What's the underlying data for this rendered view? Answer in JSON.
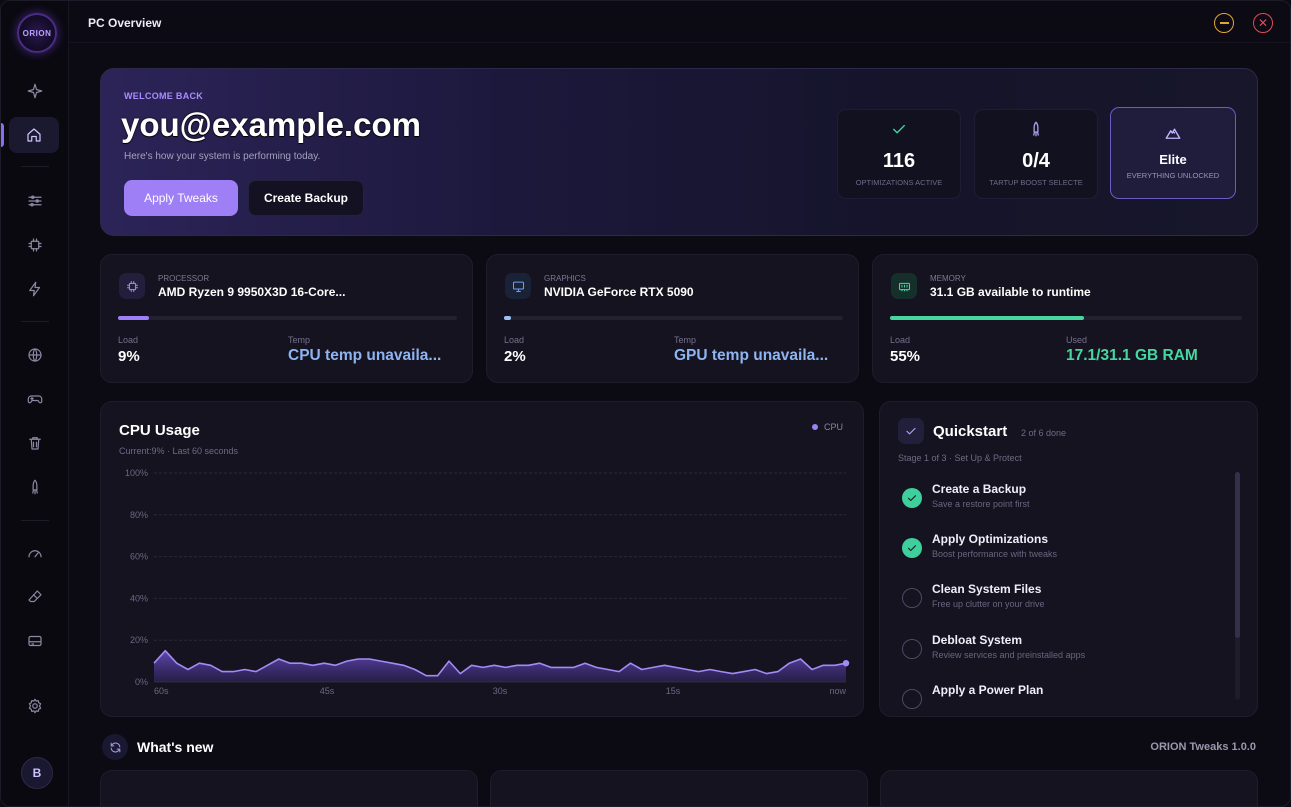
{
  "app": {
    "logo_text": "ORION",
    "window_title": "PC Overview"
  },
  "sidebar": {
    "items": [
      {
        "name": "sparkle"
      },
      {
        "name": "home",
        "active": true
      },
      {
        "name": "sliders"
      },
      {
        "name": "chip"
      },
      {
        "name": "bolt"
      },
      {
        "name": "globe"
      },
      {
        "name": "gamepad"
      },
      {
        "name": "trash"
      },
      {
        "name": "rocket"
      },
      {
        "name": "gauge"
      },
      {
        "name": "eraser"
      },
      {
        "name": "storage"
      },
      {
        "name": "gear"
      }
    ],
    "avatar_initial": "B"
  },
  "hero": {
    "kicker": "WELCOME BACK",
    "user": "you@example.com",
    "subtitle": "Here's how your system is performing today.",
    "primary_button": "Apply Tweaks",
    "secondary_button": "Create Backup",
    "stats": [
      {
        "icon": "check-icon",
        "value": "116",
        "caption": "OPTIMIZATIONS ACTIVE"
      },
      {
        "icon": "rocket-icon",
        "value": "0/4",
        "caption": "TARTUP BOOST SELECTE"
      },
      {
        "icon": "mountain-icon",
        "value": "Elite",
        "caption": "EVERYTHING UNLOCKED"
      }
    ]
  },
  "hardware": {
    "processor": {
      "kind": "PROCESSOR",
      "name": "AMD Ryzen 9 9950X3D 16-Core...",
      "load_label": "Load",
      "load_value": "9%",
      "load_fraction": 0.09,
      "temp_label": "Temp",
      "temp_value": "CPU temp unavaila..."
    },
    "graphics": {
      "kind": "GRAPHICS",
      "name": "NVIDIA GeForce RTX 5090",
      "load_label": "Load",
      "load_value": "2%",
      "load_fraction": 0.02,
      "temp_label": "Temp",
      "temp_value": "GPU temp unavaila..."
    },
    "memory": {
      "kind": "MEMORY",
      "name": "31.1 GB available to runtime",
      "load_label": "Load",
      "load_value": "55%",
      "load_fraction": 0.55,
      "used_label": "Used",
      "used_value": "17.1/31.1 GB RAM"
    }
  },
  "colors": {
    "accent": "#9d80f5",
    "green": "#3fcf9c",
    "temp_text": "#8fb4f2",
    "ram_text": "#47d6a0"
  },
  "cpu_panel": {
    "title": "CPU Usage",
    "subtitle": "Current:9% · Last 60 seconds",
    "legend": "CPU"
  },
  "chart_data": {
    "type": "area",
    "title": "CPU Usage",
    "x_labels": [
      "60s",
      "45s",
      "30s",
      "15s",
      "now"
    ],
    "y_ticks": [
      "100%",
      "80%",
      "60%",
      "40%",
      "20%",
      "0%"
    ],
    "ylim": [
      0,
      100
    ],
    "series": [
      {
        "name": "CPU",
        "values": [
          9,
          15,
          9,
          6,
          9,
          8,
          5,
          5,
          6,
          5,
          8,
          11,
          9,
          9,
          8,
          9,
          8,
          10,
          11,
          11,
          10,
          9,
          8,
          6,
          3,
          3,
          10,
          4,
          8,
          7,
          8,
          7,
          8,
          8,
          9,
          7,
          7,
          7,
          9,
          7,
          6,
          5,
          9,
          6,
          7,
          8,
          7,
          6,
          5,
          6,
          5,
          4,
          5,
          6,
          4,
          5,
          9,
          11,
          6,
          8,
          8,
          9
        ]
      }
    ],
    "grid": true
  },
  "quickstart": {
    "title": "Quickstart",
    "progress": "2 of 6 done",
    "stage": "Stage 1 of 3 · Set Up & Protect",
    "tasks": [
      {
        "title": "Create a Backup",
        "desc": "Save a restore point first",
        "done": true
      },
      {
        "title": "Apply Optimizations",
        "desc": "Boost performance with tweaks",
        "done": true
      },
      {
        "title": "Clean System Files",
        "desc": "Free up clutter on your drive",
        "done": false
      },
      {
        "title": "Debloat System",
        "desc": "Review services and preinstalled apps",
        "done": false
      },
      {
        "title": "Apply a Power Plan",
        "desc": "",
        "done": false
      }
    ]
  },
  "whats_new": {
    "title": "What's new",
    "version": "ORION Tweaks 1.0.0"
  }
}
